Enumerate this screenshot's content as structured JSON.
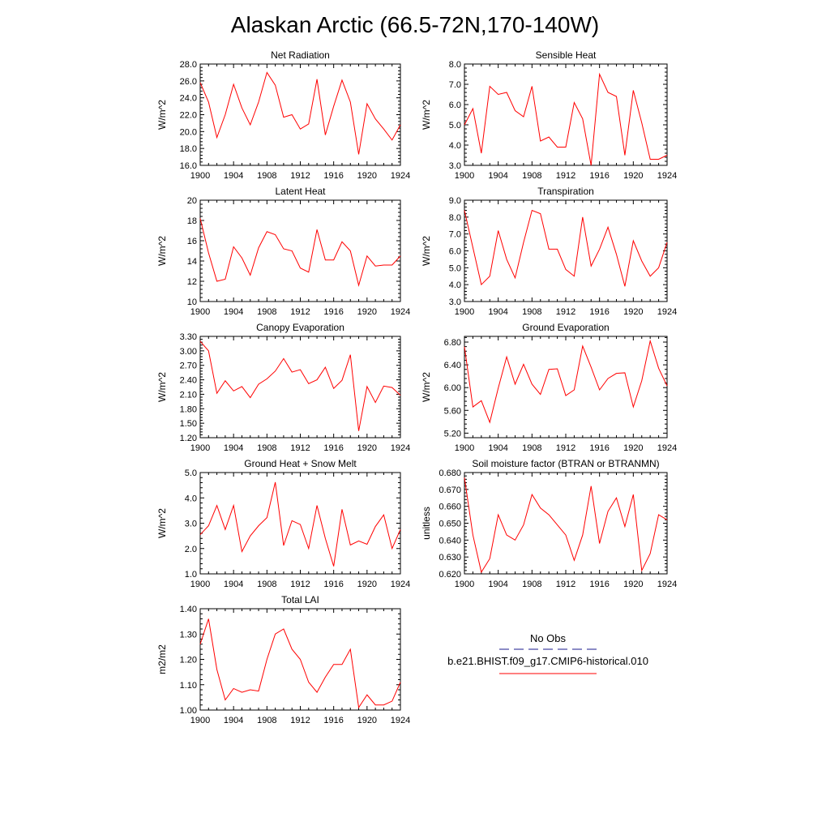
{
  "figure": {
    "title": "Alaskan Arctic (66.5-72N,170-140W)"
  },
  "legend": {
    "obs_label": "No Obs",
    "obs_color": "#1a1a8c",
    "model_label": "b.e21.BHIST.f09_g17.CMIP6-historical.010",
    "model_color": "#ff0000"
  },
  "chart_data": [
    {
      "type": "line",
      "title": "Net Radiation",
      "ylabel": "W/m^2",
      "xlim": [
        1900,
        1924
      ],
      "ylim": [
        16.0,
        28.0
      ],
      "xticks": [
        1900,
        1904,
        1908,
        1912,
        1916,
        1920,
        1924
      ],
      "yticks": [
        "16.0",
        "18.0",
        "20.0",
        "22.0",
        "24.0",
        "26.0",
        "28.0"
      ],
      "x": [
        1900,
        1901,
        1902,
        1903,
        1904,
        1905,
        1906,
        1907,
        1908,
        1909,
        1910,
        1911,
        1912,
        1913,
        1914,
        1915,
        1916,
        1917,
        1918,
        1919,
        1920,
        1921,
        1922,
        1923,
        1924
      ],
      "series": [
        {
          "color": "#ff0000",
          "values": [
            25.8,
            23.5,
            19.3,
            22.0,
            25.6,
            22.8,
            20.8,
            23.5,
            27.0,
            25.5,
            21.7,
            22.0,
            20.3,
            20.9,
            26.2,
            19.6,
            23.0,
            26.1,
            23.5,
            17.3,
            23.3,
            21.5,
            20.3,
            19.0,
            20.8
          ]
        }
      ]
    },
    {
      "type": "line",
      "title": "Sensible Heat",
      "ylabel": "W/m^2",
      "xlim": [
        1900,
        1924
      ],
      "ylim": [
        3.0,
        8.0
      ],
      "xticks": [
        1900,
        1904,
        1908,
        1912,
        1916,
        1920,
        1924
      ],
      "yticks": [
        "3.0",
        "4.0",
        "5.0",
        "6.0",
        "7.0",
        "8.0"
      ],
      "x": [
        1900,
        1901,
        1902,
        1903,
        1904,
        1905,
        1906,
        1907,
        1908,
        1909,
        1910,
        1911,
        1912,
        1913,
        1914,
        1915,
        1916,
        1917,
        1918,
        1919,
        1920,
        1921,
        1922,
        1923,
        1924
      ],
      "series": [
        {
          "color": "#ff0000",
          "values": [
            5.0,
            5.8,
            3.6,
            6.9,
            6.5,
            6.6,
            5.7,
            5.4,
            6.9,
            4.2,
            4.4,
            3.9,
            3.9,
            6.1,
            5.3,
            3.0,
            7.5,
            6.6,
            6.4,
            3.5,
            6.7,
            5.1,
            3.3,
            3.3,
            3.5
          ]
        }
      ]
    },
    {
      "type": "line",
      "title": "Latent Heat",
      "ylabel": "W/m^2",
      "xlim": [
        1900,
        1924
      ],
      "ylim": [
        10,
        20
      ],
      "xticks": [
        1900,
        1904,
        1908,
        1912,
        1916,
        1920,
        1924
      ],
      "yticks": [
        "10",
        "12",
        "14",
        "16",
        "18",
        "20"
      ],
      "x": [
        1900,
        1901,
        1902,
        1903,
        1904,
        1905,
        1906,
        1907,
        1908,
        1909,
        1910,
        1911,
        1912,
        1913,
        1914,
        1915,
        1916,
        1917,
        1918,
        1919,
        1920,
        1921,
        1922,
        1923,
        1924
      ],
      "series": [
        {
          "color": "#ff0000",
          "values": [
            18.2,
            14.8,
            12.0,
            12.2,
            15.4,
            14.3,
            12.6,
            15.3,
            16.9,
            16.6,
            15.2,
            15.0,
            13.3,
            12.9,
            17.1,
            14.1,
            14.1,
            15.9,
            15.0,
            11.6,
            14.5,
            13.5,
            13.6,
            13.6,
            14.5
          ]
        }
      ]
    },
    {
      "type": "line",
      "title": "Transpiration",
      "ylabel": "W/m^2",
      "xlim": [
        1900,
        1924
      ],
      "ylim": [
        3.0,
        9.0
      ],
      "xticks": [
        1900,
        1904,
        1908,
        1912,
        1916,
        1920,
        1924
      ],
      "yticks": [
        "3.0",
        "4.0",
        "5.0",
        "6.0",
        "7.0",
        "8.0",
        "9.0"
      ],
      "x": [
        1900,
        1901,
        1902,
        1903,
        1904,
        1905,
        1906,
        1907,
        1908,
        1909,
        1910,
        1911,
        1912,
        1913,
        1914,
        1915,
        1916,
        1917,
        1918,
        1919,
        1920,
        1921,
        1922,
        1923,
        1924
      ],
      "series": [
        {
          "color": "#ff0000",
          "values": [
            8.4,
            6.2,
            4.0,
            4.5,
            7.2,
            5.5,
            4.4,
            6.5,
            8.4,
            8.2,
            6.1,
            6.1,
            4.9,
            4.5,
            8.0,
            5.1,
            6.1,
            7.4,
            5.8,
            3.9,
            6.6,
            5.4,
            4.5,
            5.0,
            6.5
          ]
        }
      ]
    },
    {
      "type": "line",
      "title": "Canopy Evaporation",
      "ylabel": "W/m^2",
      "xlim": [
        1900,
        1924
      ],
      "ylim": [
        1.2,
        3.3
      ],
      "xticks": [
        1900,
        1904,
        1908,
        1912,
        1916,
        1920,
        1924
      ],
      "yticks": [
        "1.20",
        "1.50",
        "1.80",
        "2.10",
        "2.40",
        "2.70",
        "3.00",
        "3.30"
      ],
      "x": [
        1900,
        1901,
        1902,
        1903,
        1904,
        1905,
        1906,
        1907,
        1908,
        1909,
        1910,
        1911,
        1912,
        1913,
        1914,
        1915,
        1916,
        1917,
        1918,
        1919,
        1920,
        1921,
        1922,
        1923,
        1924
      ],
      "series": [
        {
          "color": "#ff0000",
          "values": [
            3.2,
            3.0,
            2.12,
            2.38,
            2.17,
            2.26,
            2.03,
            2.31,
            2.42,
            2.58,
            2.84,
            2.56,
            2.61,
            2.32,
            2.4,
            2.66,
            2.22,
            2.39,
            2.92,
            1.34,
            2.26,
            1.93,
            2.27,
            2.24,
            2.08
          ]
        }
      ]
    },
    {
      "type": "line",
      "title": "Ground Evaporation",
      "ylabel": "W/m^2",
      "xlim": [
        1900,
        1924
      ],
      "ylim": [
        5.12,
        6.9
      ],
      "xticks": [
        1900,
        1904,
        1908,
        1912,
        1916,
        1920,
        1924
      ],
      "yticks": [
        "5.20",
        "5.60",
        "6.00",
        "6.40",
        "6.80"
      ],
      "x": [
        1900,
        1901,
        1902,
        1903,
        1904,
        1905,
        1906,
        1907,
        1908,
        1909,
        1910,
        1911,
        1912,
        1913,
        1914,
        1915,
        1916,
        1917,
        1918,
        1919,
        1920,
        1921,
        1922,
        1923,
        1924
      ],
      "series": [
        {
          "color": "#ff0000",
          "values": [
            6.72,
            5.66,
            5.77,
            5.39,
            5.99,
            6.54,
            6.06,
            6.41,
            6.06,
            5.88,
            6.32,
            6.33,
            5.86,
            5.96,
            6.73,
            6.36,
            5.96,
            6.16,
            6.25,
            6.26,
            5.66,
            6.12,
            6.82,
            6.34,
            6.03
          ]
        }
      ]
    },
    {
      "type": "line",
      "title": "Ground Heat + Snow Melt",
      "ylabel": "W/m^2",
      "xlim": [
        1900,
        1924
      ],
      "ylim": [
        1.0,
        5.0
      ],
      "xticks": [
        1900,
        1904,
        1908,
        1912,
        1916,
        1920,
        1924
      ],
      "yticks": [
        "1.0",
        "2.0",
        "3.0",
        "4.0",
        "5.0"
      ],
      "x": [
        1900,
        1901,
        1902,
        1903,
        1904,
        1905,
        1906,
        1907,
        1908,
        1909,
        1910,
        1911,
        1912,
        1913,
        1914,
        1915,
        1916,
        1917,
        1918,
        1919,
        1920,
        1921,
        1922,
        1923,
        1924
      ],
      "series": [
        {
          "color": "#ff0000",
          "values": [
            2.55,
            2.9,
            3.7,
            2.75,
            3.7,
            1.88,
            2.5,
            2.9,
            3.22,
            4.62,
            2.12,
            3.1,
            2.95,
            2.0,
            3.7,
            2.4,
            1.3,
            3.55,
            2.14,
            2.3,
            2.17,
            2.87,
            3.33,
            2.0,
            2.75
          ]
        }
      ]
    },
    {
      "type": "line",
      "title": "Soil moisture factor (BTRAN or BTRANMN)",
      "ylabel": "unitless",
      "xlim": [
        1900,
        1924
      ],
      "ylim": [
        0.62,
        0.68
      ],
      "xticks": [
        1900,
        1904,
        1908,
        1912,
        1916,
        1920,
        1924
      ],
      "yticks": [
        "0.620",
        "0.630",
        "0.640",
        "0.650",
        "0.660",
        "0.670",
        "0.680"
      ],
      "x": [
        1900,
        1901,
        1902,
        1903,
        1904,
        1905,
        1906,
        1907,
        1908,
        1909,
        1910,
        1911,
        1912,
        1913,
        1914,
        1915,
        1916,
        1917,
        1918,
        1919,
        1920,
        1921,
        1922,
        1923,
        1924
      ],
      "series": [
        {
          "color": "#ff0000",
          "values": [
            0.677,
            0.643,
            0.621,
            0.629,
            0.655,
            0.643,
            0.64,
            0.649,
            0.667,
            0.659,
            0.655,
            0.649,
            0.643,
            0.628,
            0.643,
            0.672,
            0.638,
            0.657,
            0.665,
            0.648,
            0.667,
            0.622,
            0.632,
            0.655,
            0.652
          ]
        }
      ]
    },
    {
      "type": "line",
      "title": "Total LAI",
      "ylabel": "m2/m2",
      "xlim": [
        1900,
        1924
      ],
      "ylim": [
        1.0,
        1.4
      ],
      "xticks": [
        1900,
        1904,
        1908,
        1912,
        1916,
        1920,
        1924
      ],
      "yticks": [
        "1.00",
        "1.10",
        "1.20",
        "1.30",
        "1.40"
      ],
      "x": [
        1900,
        1901,
        1902,
        1903,
        1904,
        1905,
        1906,
        1907,
        1908,
        1909,
        1910,
        1911,
        1912,
        1913,
        1914,
        1915,
        1916,
        1917,
        1918,
        1919,
        1920,
        1921,
        1922,
        1923,
        1924
      ],
      "series": [
        {
          "color": "#ff0000",
          "values": [
            1.26,
            1.36,
            1.16,
            1.04,
            1.085,
            1.07,
            1.08,
            1.075,
            1.2,
            1.3,
            1.32,
            1.24,
            1.2,
            1.11,
            1.07,
            1.13,
            1.18,
            1.18,
            1.24,
            1.01,
            1.06,
            1.02,
            1.02,
            1.035,
            1.11
          ]
        }
      ]
    }
  ]
}
